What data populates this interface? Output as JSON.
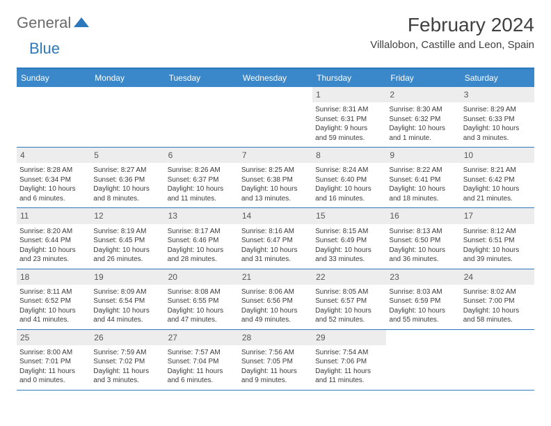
{
  "logo": {
    "general": "General",
    "blue": "Blue"
  },
  "title": "February 2024",
  "location": "Villalobon, Castille and Leon, Spain",
  "colors": {
    "header_bg": "#3a87c9",
    "border": "#2d78bd",
    "daynum_bg": "#ededed",
    "text": "#3a3a3a",
    "title_text": "#404040",
    "logo_gray": "#6a6a6a"
  },
  "weekdays": [
    "Sunday",
    "Monday",
    "Tuesday",
    "Wednesday",
    "Thursday",
    "Friday",
    "Saturday"
  ],
  "weeks": [
    [
      null,
      null,
      null,
      null,
      {
        "n": "1",
        "sr": "Sunrise: 8:31 AM",
        "ss": "Sunset: 6:31 PM",
        "d1": "Daylight: 9 hours",
        "d2": "and 59 minutes."
      },
      {
        "n": "2",
        "sr": "Sunrise: 8:30 AM",
        "ss": "Sunset: 6:32 PM",
        "d1": "Daylight: 10 hours",
        "d2": "and 1 minute."
      },
      {
        "n": "3",
        "sr": "Sunrise: 8:29 AM",
        "ss": "Sunset: 6:33 PM",
        "d1": "Daylight: 10 hours",
        "d2": "and 3 minutes."
      }
    ],
    [
      {
        "n": "4",
        "sr": "Sunrise: 8:28 AM",
        "ss": "Sunset: 6:34 PM",
        "d1": "Daylight: 10 hours",
        "d2": "and 6 minutes."
      },
      {
        "n": "5",
        "sr": "Sunrise: 8:27 AM",
        "ss": "Sunset: 6:36 PM",
        "d1": "Daylight: 10 hours",
        "d2": "and 8 minutes."
      },
      {
        "n": "6",
        "sr": "Sunrise: 8:26 AM",
        "ss": "Sunset: 6:37 PM",
        "d1": "Daylight: 10 hours",
        "d2": "and 11 minutes."
      },
      {
        "n": "7",
        "sr": "Sunrise: 8:25 AM",
        "ss": "Sunset: 6:38 PM",
        "d1": "Daylight: 10 hours",
        "d2": "and 13 minutes."
      },
      {
        "n": "8",
        "sr": "Sunrise: 8:24 AM",
        "ss": "Sunset: 6:40 PM",
        "d1": "Daylight: 10 hours",
        "d2": "and 16 minutes."
      },
      {
        "n": "9",
        "sr": "Sunrise: 8:22 AM",
        "ss": "Sunset: 6:41 PM",
        "d1": "Daylight: 10 hours",
        "d2": "and 18 minutes."
      },
      {
        "n": "10",
        "sr": "Sunrise: 8:21 AM",
        "ss": "Sunset: 6:42 PM",
        "d1": "Daylight: 10 hours",
        "d2": "and 21 minutes."
      }
    ],
    [
      {
        "n": "11",
        "sr": "Sunrise: 8:20 AM",
        "ss": "Sunset: 6:44 PM",
        "d1": "Daylight: 10 hours",
        "d2": "and 23 minutes."
      },
      {
        "n": "12",
        "sr": "Sunrise: 8:19 AM",
        "ss": "Sunset: 6:45 PM",
        "d1": "Daylight: 10 hours",
        "d2": "and 26 minutes."
      },
      {
        "n": "13",
        "sr": "Sunrise: 8:17 AM",
        "ss": "Sunset: 6:46 PM",
        "d1": "Daylight: 10 hours",
        "d2": "and 28 minutes."
      },
      {
        "n": "14",
        "sr": "Sunrise: 8:16 AM",
        "ss": "Sunset: 6:47 PM",
        "d1": "Daylight: 10 hours",
        "d2": "and 31 minutes."
      },
      {
        "n": "15",
        "sr": "Sunrise: 8:15 AM",
        "ss": "Sunset: 6:49 PM",
        "d1": "Daylight: 10 hours",
        "d2": "and 33 minutes."
      },
      {
        "n": "16",
        "sr": "Sunrise: 8:13 AM",
        "ss": "Sunset: 6:50 PM",
        "d1": "Daylight: 10 hours",
        "d2": "and 36 minutes."
      },
      {
        "n": "17",
        "sr": "Sunrise: 8:12 AM",
        "ss": "Sunset: 6:51 PM",
        "d1": "Daylight: 10 hours",
        "d2": "and 39 minutes."
      }
    ],
    [
      {
        "n": "18",
        "sr": "Sunrise: 8:11 AM",
        "ss": "Sunset: 6:52 PM",
        "d1": "Daylight: 10 hours",
        "d2": "and 41 minutes."
      },
      {
        "n": "19",
        "sr": "Sunrise: 8:09 AM",
        "ss": "Sunset: 6:54 PM",
        "d1": "Daylight: 10 hours",
        "d2": "and 44 minutes."
      },
      {
        "n": "20",
        "sr": "Sunrise: 8:08 AM",
        "ss": "Sunset: 6:55 PM",
        "d1": "Daylight: 10 hours",
        "d2": "and 47 minutes."
      },
      {
        "n": "21",
        "sr": "Sunrise: 8:06 AM",
        "ss": "Sunset: 6:56 PM",
        "d1": "Daylight: 10 hours",
        "d2": "and 49 minutes."
      },
      {
        "n": "22",
        "sr": "Sunrise: 8:05 AM",
        "ss": "Sunset: 6:57 PM",
        "d1": "Daylight: 10 hours",
        "d2": "and 52 minutes."
      },
      {
        "n": "23",
        "sr": "Sunrise: 8:03 AM",
        "ss": "Sunset: 6:59 PM",
        "d1": "Daylight: 10 hours",
        "d2": "and 55 minutes."
      },
      {
        "n": "24",
        "sr": "Sunrise: 8:02 AM",
        "ss": "Sunset: 7:00 PM",
        "d1": "Daylight: 10 hours",
        "d2": "and 58 minutes."
      }
    ],
    [
      {
        "n": "25",
        "sr": "Sunrise: 8:00 AM",
        "ss": "Sunset: 7:01 PM",
        "d1": "Daylight: 11 hours",
        "d2": "and 0 minutes."
      },
      {
        "n": "26",
        "sr": "Sunrise: 7:59 AM",
        "ss": "Sunset: 7:02 PM",
        "d1": "Daylight: 11 hours",
        "d2": "and 3 minutes."
      },
      {
        "n": "27",
        "sr": "Sunrise: 7:57 AM",
        "ss": "Sunset: 7:04 PM",
        "d1": "Daylight: 11 hours",
        "d2": "and 6 minutes."
      },
      {
        "n": "28",
        "sr": "Sunrise: 7:56 AM",
        "ss": "Sunset: 7:05 PM",
        "d1": "Daylight: 11 hours",
        "d2": "and 9 minutes."
      },
      {
        "n": "29",
        "sr": "Sunrise: 7:54 AM",
        "ss": "Sunset: 7:06 PM",
        "d1": "Daylight: 11 hours",
        "d2": "and 11 minutes."
      },
      null,
      null
    ]
  ]
}
